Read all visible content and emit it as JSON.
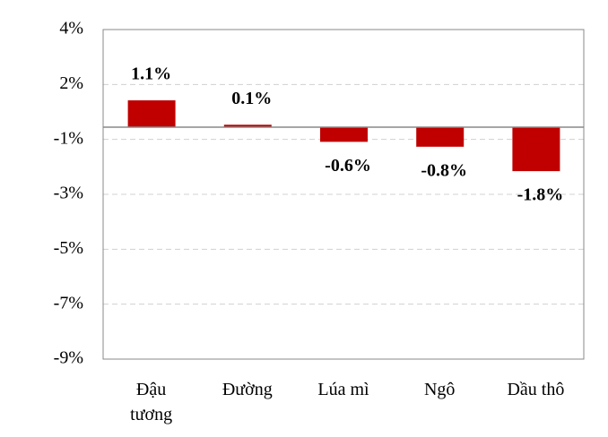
{
  "chart_data": {
    "type": "bar",
    "categories": [
      "Đậu tương",
      "Đường",
      "Lúa mì",
      "Ngô",
      "Dầu thô"
    ],
    "values": [
      1.1,
      0.1,
      -0.6,
      -0.8,
      -1.8
    ],
    "value_labels": [
      "1.1%",
      "0.1%",
      "-0.6%",
      "-0.8%",
      "-1.8%"
    ],
    "color": "#c00000",
    "ylim": [
      -9.5,
      4
    ],
    "yticks": [
      {
        "value": 4,
        "label": "4%"
      },
      {
        "value": 1.75,
        "label": "2%"
      },
      {
        "value": -0.5,
        "label": "-1%"
      },
      {
        "value": -2.75,
        "label": "-3%"
      },
      {
        "value": -5,
        "label": "-5%"
      },
      {
        "value": -7.25,
        "label": "-7%"
      },
      {
        "value": -9.5,
        "label": "-9%"
      }
    ],
    "grid": true
  }
}
